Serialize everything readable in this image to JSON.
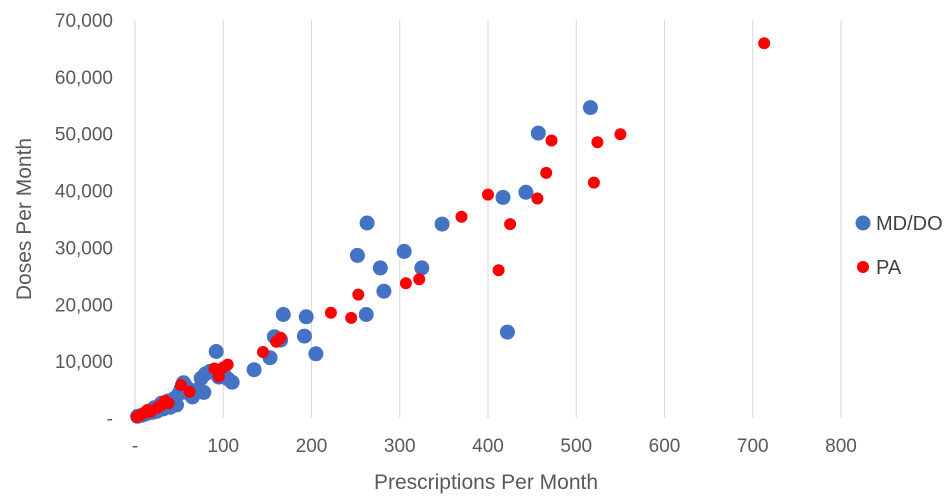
{
  "chart_data": {
    "type": "scatter",
    "title": "",
    "xlabel": "Prescriptions Per Month",
    "ylabel": "Doses Per Month",
    "xlim": [
      0,
      800
    ],
    "ylim": [
      0,
      70000
    ],
    "x_ticks": [
      0,
      100,
      200,
      300,
      400,
      500,
      600,
      700,
      800
    ],
    "x_tick_labels": [
      "-",
      "100",
      "200",
      "300",
      "400",
      "500",
      "600",
      "700",
      "800"
    ],
    "y_ticks": [
      0,
      10000,
      20000,
      30000,
      40000,
      50000,
      60000,
      70000
    ],
    "y_tick_labels": [
      "-",
      "10,000",
      "20,000",
      "30,000",
      "40,000",
      "50,000",
      "60,000",
      "70,000"
    ],
    "grid": "vertical",
    "legend_position": "right",
    "series": [
      {
        "name": "MD/DO",
        "color": "#4472C4",
        "points": [
          [
            3,
            300
          ],
          [
            8,
            500
          ],
          [
            12,
            700
          ],
          [
            15,
            900
          ],
          [
            18,
            1300
          ],
          [
            20,
            1000
          ],
          [
            22,
            1800
          ],
          [
            25,
            1200
          ],
          [
            27,
            2100
          ],
          [
            30,
            2600
          ],
          [
            32,
            1600
          ],
          [
            35,
            2400
          ],
          [
            38,
            3000
          ],
          [
            40,
            1900
          ],
          [
            42,
            2800
          ],
          [
            45,
            3500
          ],
          [
            47,
            2300
          ],
          [
            50,
            4300
          ],
          [
            52,
            5000
          ],
          [
            55,
            6200
          ],
          [
            58,
            5500
          ],
          [
            62,
            4200
          ],
          [
            65,
            3700
          ],
          [
            70,
            4900
          ],
          [
            75,
            7000
          ],
          [
            78,
            4500
          ],
          [
            80,
            7800
          ],
          [
            85,
            8200
          ],
          [
            92,
            11700
          ],
          [
            95,
            7200
          ],
          [
            100,
            7900
          ],
          [
            105,
            6900
          ],
          [
            110,
            6300
          ],
          [
            135,
            8500
          ],
          [
            153,
            10600
          ],
          [
            158,
            14300
          ],
          [
            165,
            13700
          ],
          [
            168,
            18200
          ],
          [
            192,
            14400
          ],
          [
            194,
            17800
          ],
          [
            205,
            11300
          ],
          [
            252,
            28600
          ],
          [
            262,
            18200
          ],
          [
            263,
            34300
          ],
          [
            278,
            26400
          ],
          [
            282,
            22300
          ],
          [
            305,
            29300
          ],
          [
            325,
            26400
          ],
          [
            348,
            34100
          ],
          [
            417,
            38800
          ],
          [
            422,
            15100
          ],
          [
            443,
            39700
          ],
          [
            457,
            50100
          ],
          [
            516,
            54600
          ]
        ]
      },
      {
        "name": "PA",
        "color": "#FF0000",
        "points": [
          [
            2,
            200
          ],
          [
            6,
            500
          ],
          [
            10,
            900
          ],
          [
            14,
            1400
          ],
          [
            18,
            1100
          ],
          [
            25,
            1800
          ],
          [
            30,
            2300
          ],
          [
            34,
            3000
          ],
          [
            38,
            2600
          ],
          [
            52,
            5800
          ],
          [
            62,
            4600
          ],
          [
            90,
            8700
          ],
          [
            95,
            7300
          ],
          [
            100,
            8900
          ],
          [
            105,
            9400
          ],
          [
            145,
            11600
          ],
          [
            160,
            13400
          ],
          [
            165,
            14100
          ],
          [
            222,
            18500
          ],
          [
            245,
            17600
          ],
          [
            253,
            21700
          ],
          [
            307,
            23700
          ],
          [
            322,
            24400
          ],
          [
            370,
            35400
          ],
          [
            400,
            39300
          ],
          [
            412,
            26000
          ],
          [
            425,
            34100
          ],
          [
            456,
            38600
          ],
          [
            466,
            43100
          ],
          [
            472,
            48800
          ],
          [
            520,
            41400
          ],
          [
            524,
            48500
          ],
          [
            550,
            49900
          ],
          [
            713,
            65900
          ]
        ]
      }
    ]
  }
}
